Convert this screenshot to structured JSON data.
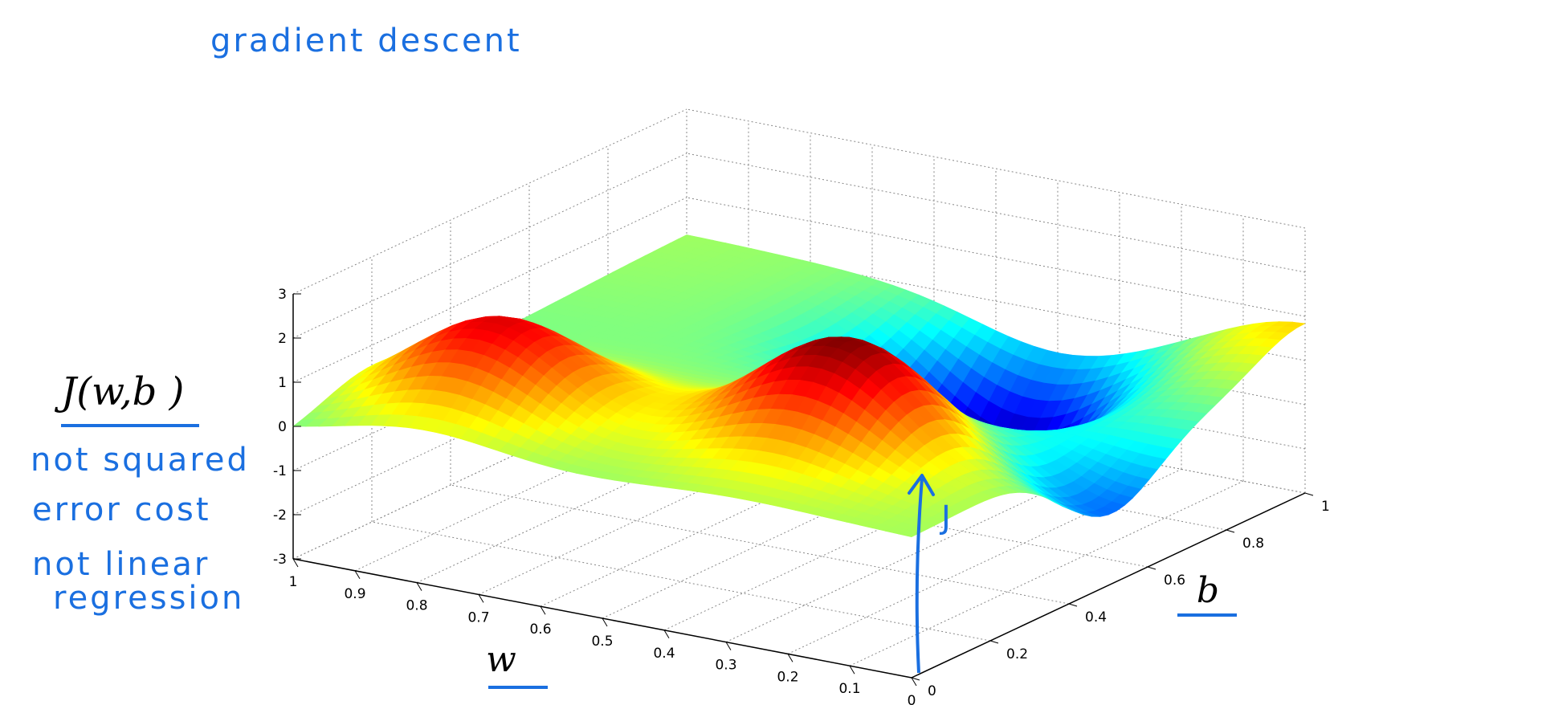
{
  "annotations": {
    "title": "gradient descent",
    "cost_label": "J(w,b )",
    "note_line1": "not squared",
    "note_line2": "error cost",
    "note_line3": "not linear",
    "note_line4": "regression",
    "w_label": "w",
    "b_label": "b",
    "point_label": "J",
    "ink_color": "#1a6fe0"
  },
  "chart_data": {
    "type": "surface",
    "title": "",
    "xlabel": "w",
    "ylabel": "b",
    "zlabel": "J(w,b )",
    "xlim": [
      0,
      1
    ],
    "ylim": [
      0,
      1
    ],
    "zlim": [
      -3,
      3
    ],
    "x_ticks": [
      "0",
      "0.1",
      "0.2",
      "0.3",
      "0.4",
      "0.5",
      "0.6",
      "0.7",
      "0.8",
      "0.9",
      "1"
    ],
    "y_ticks": [
      "0",
      "0.2",
      "0.4",
      "0.6",
      "0.8",
      "1"
    ],
    "z_ticks": [
      "-3",
      "-2",
      "-1",
      "0",
      "1",
      "2",
      "3"
    ],
    "grid": true,
    "colormap": "jet",
    "features": [
      {
        "kind": "peak",
        "w": 0.8,
        "b": 0.2,
        "J": 2.2
      },
      {
        "kind": "peak",
        "w": 0.3,
        "b": 0.3,
        "J": 2.5
      },
      {
        "kind": "valley",
        "w": 0.4,
        "b": 0.8,
        "J": -3.0
      },
      {
        "kind": "valley",
        "w": 0.0,
        "b": 0.5,
        "J": -1.5
      },
      {
        "kind": "saddle",
        "w": 0.0,
        "b": 1.0,
        "J": 1.0
      }
    ]
  }
}
